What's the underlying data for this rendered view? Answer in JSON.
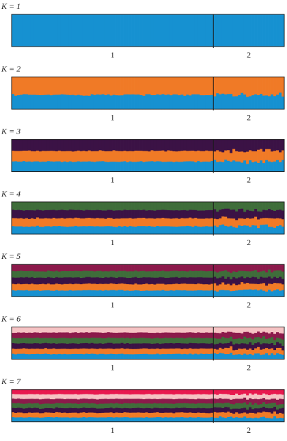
{
  "chart_data": [
    {
      "type": "bar",
      "k_label": "K = 1",
      "k": 1,
      "groups": [
        "1",
        "2"
      ],
      "boundary_fraction": 0.738,
      "series": [
        {
          "color": "#1691d1",
          "mean_fraction": 1.0
        }
      ]
    },
    {
      "type": "bar",
      "k_label": "K = 2",
      "k": 2,
      "groups": [
        "1",
        "2"
      ],
      "boundary_fraction": 0.738,
      "series": [
        {
          "color": "#1691d1",
          "mean_fraction": 0.45
        },
        {
          "color": "#f07a26",
          "mean_fraction": 0.55
        }
      ]
    },
    {
      "type": "bar",
      "k_label": "K = 3",
      "k": 3,
      "groups": [
        "1",
        "2"
      ],
      "boundary_fraction": 0.738,
      "series": [
        {
          "color": "#1691d1",
          "mean_fraction": 0.32
        },
        {
          "color": "#f07a26",
          "mean_fraction": 0.33
        },
        {
          "color": "#3b1245",
          "mean_fraction": 0.35
        }
      ]
    },
    {
      "type": "bar",
      "k_label": "K = 4",
      "k": 4,
      "groups": [
        "1",
        "2"
      ],
      "boundary_fraction": 0.738,
      "series": [
        {
          "color": "#1691d1",
          "mean_fraction": 0.25
        },
        {
          "color": "#f07a26",
          "mean_fraction": 0.25
        },
        {
          "color": "#3b1245",
          "mean_fraction": 0.25
        },
        {
          "color": "#3f6d3a",
          "mean_fraction": 0.25
        }
      ]
    },
    {
      "type": "bar",
      "k_label": "K = 5",
      "k": 5,
      "groups": [
        "1",
        "2"
      ],
      "boundary_fraction": 0.738,
      "series": [
        {
          "color": "#1691d1",
          "mean_fraction": 0.2
        },
        {
          "color": "#f07a26",
          "mean_fraction": 0.2
        },
        {
          "color": "#3b1245",
          "mean_fraction": 0.2
        },
        {
          "color": "#3f6d3a",
          "mean_fraction": 0.2
        },
        {
          "color": "#8c1a4b",
          "mean_fraction": 0.2
        }
      ]
    },
    {
      "type": "bar",
      "k_label": "K = 6",
      "k": 6,
      "groups": [
        "1",
        "2"
      ],
      "boundary_fraction": 0.738,
      "series": [
        {
          "color": "#1691d1",
          "mean_fraction": 0.167
        },
        {
          "color": "#f07a26",
          "mean_fraction": 0.167
        },
        {
          "color": "#3b1245",
          "mean_fraction": 0.167
        },
        {
          "color": "#3f6d3a",
          "mean_fraction": 0.167
        },
        {
          "color": "#8c1a4b",
          "mean_fraction": 0.166
        },
        {
          "color": "#f6c3c4",
          "mean_fraction": 0.166
        }
      ]
    },
    {
      "type": "bar",
      "k_label": "K = 7",
      "k": 7,
      "groups": [
        "1",
        "2"
      ],
      "boundary_fraction": 0.738,
      "series": [
        {
          "color": "#1691d1",
          "mean_fraction": 0.143
        },
        {
          "color": "#f07a26",
          "mean_fraction": 0.143
        },
        {
          "color": "#3b1245",
          "mean_fraction": 0.143
        },
        {
          "color": "#3f6d3a",
          "mean_fraction": 0.143
        },
        {
          "color": "#8c1a4b",
          "mean_fraction": 0.143
        },
        {
          "color": "#f6c3c4",
          "mean_fraction": 0.143
        },
        {
          "color": "#e8194f",
          "mean_fraction": 0.142
        }
      ]
    }
  ]
}
